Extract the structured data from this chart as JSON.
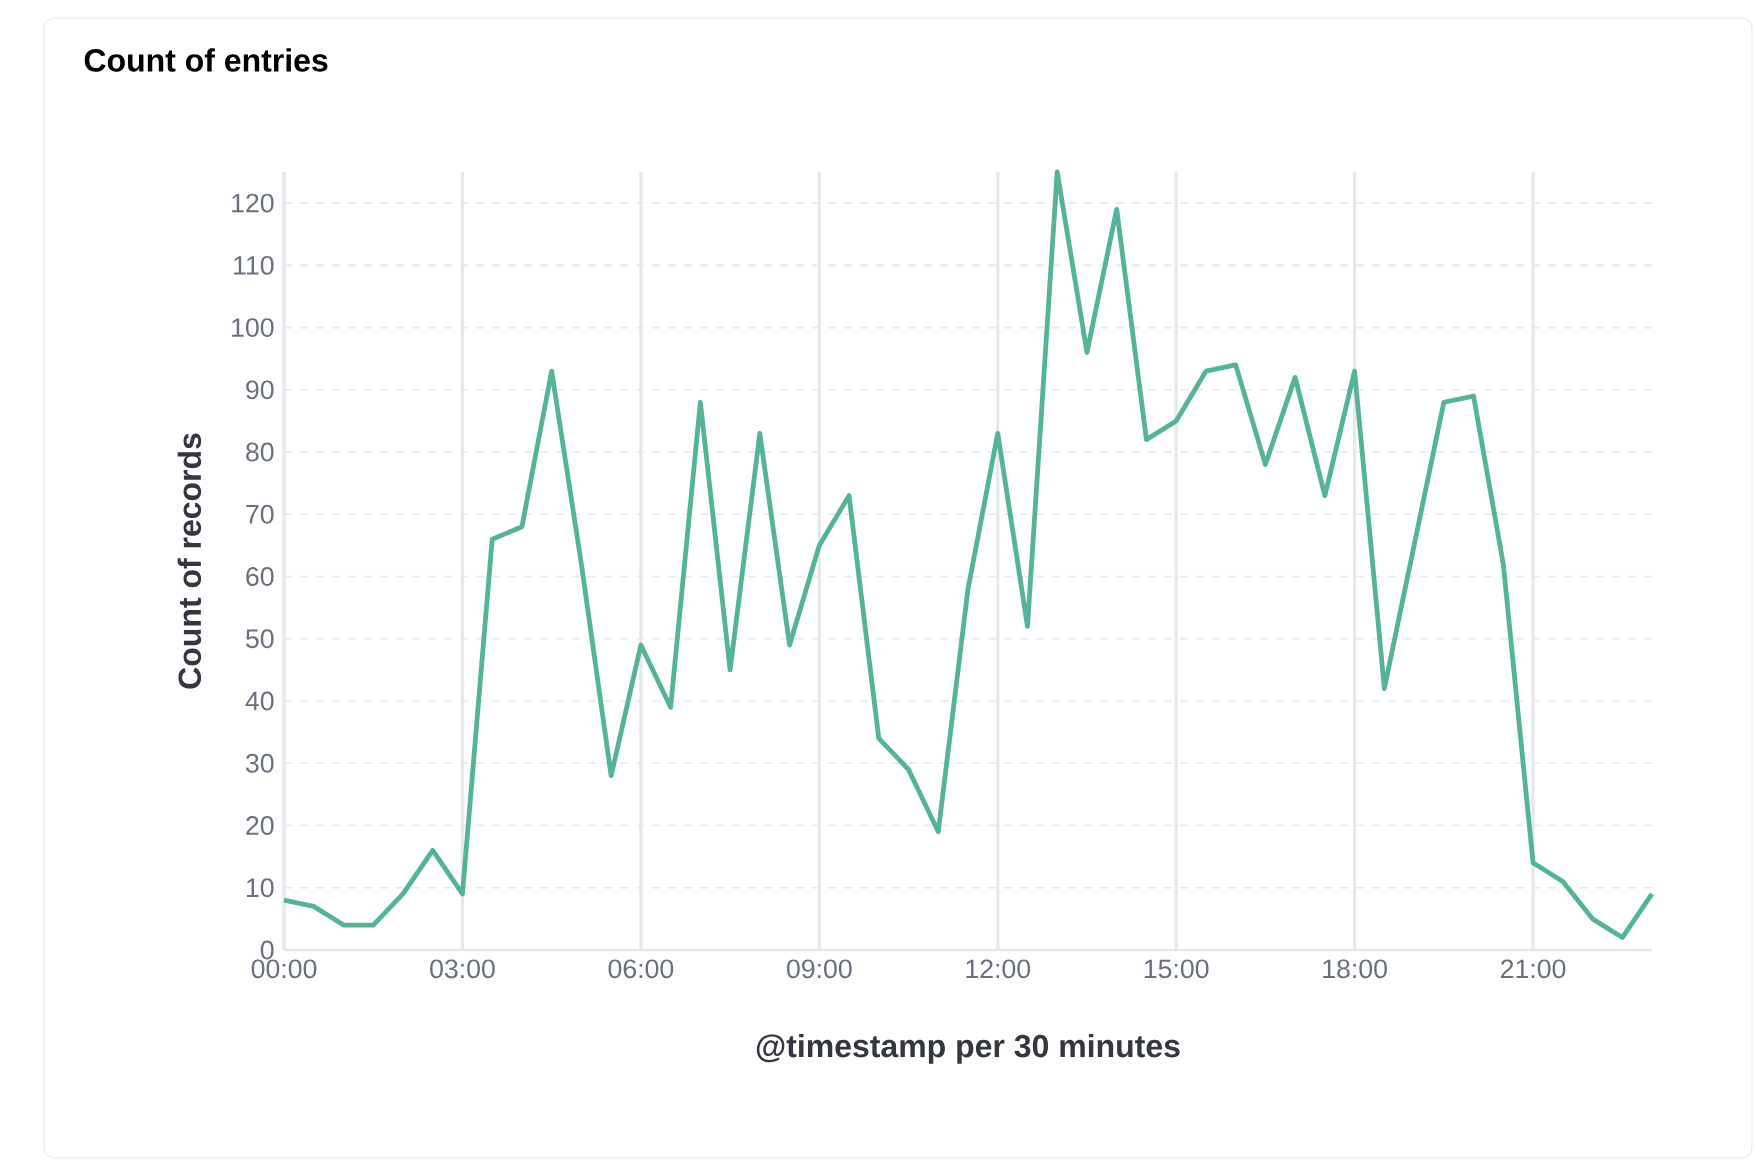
{
  "chart_data": {
    "type": "line",
    "title": "Count of entries",
    "xlabel": "@timestamp per 30 minutes",
    "ylabel": "Count of records",
    "x": [
      0,
      0.5,
      1,
      1.5,
      2,
      2.5,
      3,
      3.5,
      4,
      4.5,
      5,
      5.5,
      6,
      6.5,
      7,
      7.5,
      8,
      8.5,
      9,
      9.5,
      10,
      10.5,
      11,
      11.5,
      12,
      12.5,
      13,
      13.5,
      14,
      14.5,
      15,
      15.5,
      16,
      16.5,
      17,
      17.5,
      18,
      18.5,
      19,
      19.5,
      20,
      20.5,
      21,
      21.5,
      22,
      22.5,
      23
    ],
    "series": [
      {
        "color": "#54b399",
        "values": [
          8,
          7,
          4,
          4,
          9,
          16,
          9,
          66,
          68,
          93,
          62,
          28,
          49,
          39,
          88,
          45,
          83,
          49,
          65,
          73,
          34,
          29,
          19,
          58,
          83,
          52,
          125,
          96,
          119,
          82,
          85,
          93,
          94,
          78,
          92,
          73,
          93,
          42,
          65,
          88,
          89,
          62,
          14,
          11,
          5,
          2,
          9
        ]
      }
    ],
    "xlim": [
      0,
      23
    ],
    "ylim": [
      0,
      125
    ],
    "xticks": [
      {
        "value": 0,
        "label": "00:00"
      },
      {
        "value": 3,
        "label": "03:00"
      },
      {
        "value": 6,
        "label": "06:00"
      },
      {
        "value": 9,
        "label": "09:00"
      },
      {
        "value": 12,
        "label": "12:00"
      },
      {
        "value": 15,
        "label": "15:00"
      },
      {
        "value": 18,
        "label": "18:00"
      },
      {
        "value": 21,
        "label": "21:00"
      }
    ],
    "yticks": [
      0,
      10,
      20,
      30,
      40,
      50,
      60,
      70,
      80,
      90,
      100,
      110,
      120
    ],
    "grid": true,
    "marker": "none",
    "line_style": "solid"
  }
}
